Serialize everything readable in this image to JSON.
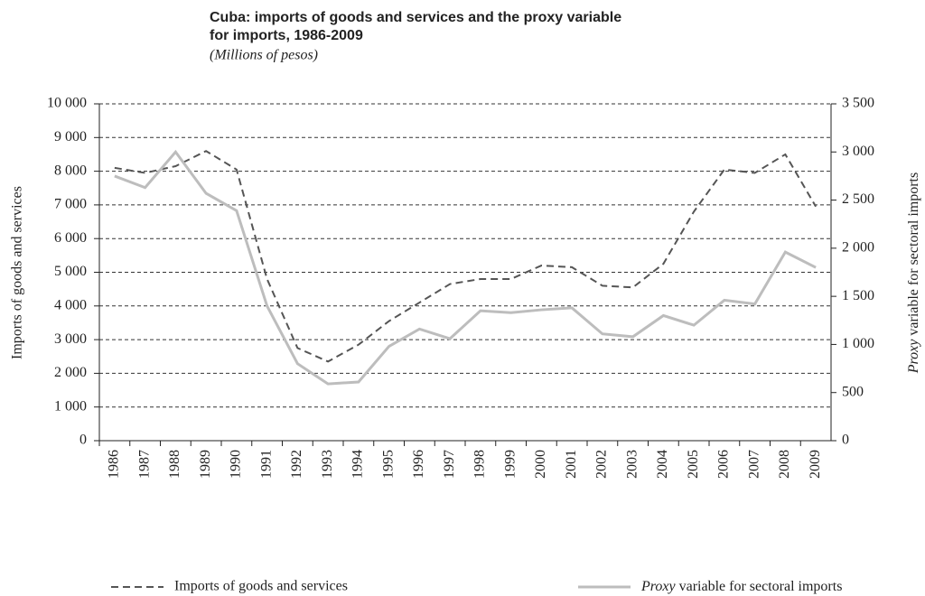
{
  "chart_data": {
    "type": "line",
    "title": [
      "Cuba: imports of goods and services and the proxy variable",
      "for imports, 1986-2009"
    ],
    "subtitle": "(Millions of pesos)",
    "y_label": "Imports of goods and services",
    "y2_label": "Proxy variable for sectoral imports",
    "categories": [
      "1986",
      "1987",
      "1988",
      "1989",
      "1990",
      "1991",
      "1992",
      "1993",
      "1994",
      "1995",
      "1996",
      "1997",
      "1998",
      "1999",
      "2000",
      "2001",
      "2002",
      "2003",
      "2004",
      "2005",
      "2006",
      "2007",
      "2008",
      "2009"
    ],
    "series": [
      {
        "name": "Imports of goods and services",
        "color": "#555555",
        "dash": true,
        "values": [
          8100,
          7950,
          8150,
          8600,
          8050,
          4800,
          2750,
          2350,
          2850,
          3550,
          4100,
          4650,
          4800,
          4800,
          5200,
          5150,
          4600,
          4550,
          5250,
          6800,
          8050,
          7950,
          8500,
          6950
        ]
      },
      {
        "name": "Proxy variable for sectoral imports",
        "color": "#bdbdbd",
        "axis": "y2",
        "values": [
          2750,
          2630,
          3000,
          2570,
          2390,
          1400,
          800,
          590,
          610,
          980,
          1160,
          1060,
          1350,
          1330,
          1360,
          1380,
          1110,
          1080,
          1300,
          1200,
          1460,
          1420,
          1960,
          1800
        ]
      }
    ],
    "ylim": [
      0,
      10000
    ],
    "yticks": [
      0,
      {
        "value": 1000,
        "label": "1 000"
      },
      {
        "value": 2000,
        "label": "2 000"
      },
      {
        "value": 3000,
        "label": "3 000"
      },
      {
        "value": 4000,
        "label": "4 000"
      },
      {
        "value": 5000,
        "label": "5 000"
      },
      {
        "value": 6000,
        "label": "6 000"
      },
      {
        "value": 7000,
        "label": "7 000"
      },
      {
        "value": 8000,
        "label": "8 000"
      },
      {
        "value": 9000,
        "label": "9 000"
      },
      {
        "value": 10000,
        "label": "10 000"
      }
    ],
    "y2lim": [
      0,
      3500
    ],
    "y2ticks": [
      0,
      500,
      {
        "value": 1000,
        "label": "1 000"
      },
      {
        "value": 1500,
        "label": "1 500"
      },
      {
        "value": 2000,
        "label": "2 000"
      },
      {
        "value": 2500,
        "label": "2 500"
      },
      {
        "value": 3000,
        "label": "3 000"
      },
      {
        "value": 3500,
        "label": "3 500"
      }
    ],
    "grid": true,
    "legend": "bottom"
  }
}
